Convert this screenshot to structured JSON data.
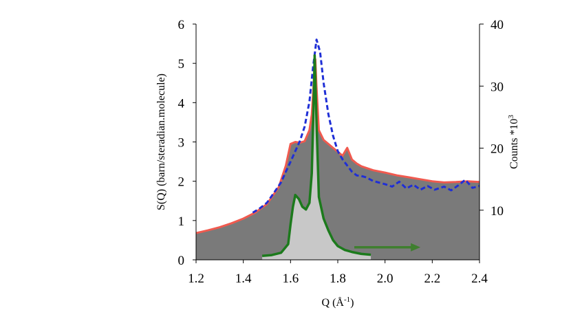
{
  "chart_data": {
    "type": "line",
    "xlabel": "Q  (Å",
    "xlabel_sup": "-1",
    "xlabel_close": ")",
    "ylabel": "S(Q) (barn/steradian.molecule)",
    "y2label": "Counts *10",
    "y2label_sup": "3",
    "xlim": [
      1.2,
      2.4
    ],
    "ylim": [
      0,
      6
    ],
    "y2lim": [
      2,
      40
    ],
    "xticks": [
      "1.2",
      "1.4",
      "1.6",
      "1.8",
      "2.0",
      "2.2",
      "2.4"
    ],
    "yticks": [
      "0",
      "1",
      "2",
      "3",
      "4",
      "5",
      "6"
    ],
    "y2ticks": [
      "10",
      "20",
      "30",
      "40"
    ],
    "grid": false,
    "colors": {
      "plot_background": "#ffffff",
      "area_fill": "#7a7a7a",
      "red_line": "#f05a4f",
      "blue_dashed": "#1f2fd6",
      "green_line": "#1c7a1c",
      "green_fill": "#c8c8c8",
      "arrow": "#3f7f2f"
    },
    "series": [
      {
        "style": "solid-red-filled",
        "axis": "left",
        "points": [
          [
            1.2,
            0.68
          ],
          [
            1.25,
            0.75
          ],
          [
            1.3,
            0.83
          ],
          [
            1.35,
            0.93
          ],
          [
            1.4,
            1.05
          ],
          [
            1.45,
            1.2
          ],
          [
            1.5,
            1.42
          ],
          [
            1.55,
            1.85
          ],
          [
            1.58,
            2.4
          ],
          [
            1.6,
            2.95
          ],
          [
            1.62,
            3.0
          ],
          [
            1.64,
            2.98
          ],
          [
            1.66,
            3.02
          ],
          [
            1.68,
            3.3
          ],
          [
            1.69,
            3.7
          ],
          [
            1.7,
            4.7
          ],
          [
            1.705,
            5.1
          ],
          [
            1.71,
            4.4
          ],
          [
            1.72,
            3.3
          ],
          [
            1.74,
            3.05
          ],
          [
            1.76,
            2.95
          ],
          [
            1.78,
            2.85
          ],
          [
            1.8,
            2.75
          ],
          [
            1.82,
            2.65
          ],
          [
            1.84,
            2.85
          ],
          [
            1.86,
            2.55
          ],
          [
            1.88,
            2.45
          ],
          [
            1.9,
            2.38
          ],
          [
            1.95,
            2.28
          ],
          [
            2.0,
            2.22
          ],
          [
            2.05,
            2.15
          ],
          [
            2.1,
            2.1
          ],
          [
            2.15,
            2.05
          ],
          [
            2.2,
            2.0
          ],
          [
            2.25,
            1.97
          ],
          [
            2.3,
            1.98
          ],
          [
            2.35,
            2.0
          ],
          [
            2.4,
            1.98
          ]
        ]
      },
      {
        "style": "dashed-blue",
        "axis": "right",
        "points": [
          [
            1.44,
            9.6
          ],
          [
            1.47,
            10.3
          ],
          [
            1.5,
            11.2
          ],
          [
            1.53,
            12.8
          ],
          [
            1.56,
            14.5
          ],
          [
            1.58,
            16.2
          ],
          [
            1.6,
            17.8
          ],
          [
            1.62,
            19.5
          ],
          [
            1.64,
            21.2
          ],
          [
            1.66,
            23.5
          ],
          [
            1.68,
            27.5
          ],
          [
            1.695,
            33.0
          ],
          [
            1.71,
            37.5
          ],
          [
            1.725,
            35.5
          ],
          [
            1.74,
            30.5
          ],
          [
            1.76,
            25.5
          ],
          [
            1.78,
            22.0
          ],
          [
            1.8,
            19.5
          ],
          [
            1.82,
            18.2
          ],
          [
            1.84,
            17.2
          ],
          [
            1.86,
            16.2
          ],
          [
            1.88,
            15.6
          ],
          [
            1.9,
            15.5
          ],
          [
            1.92,
            15.3
          ],
          [
            1.95,
            14.7
          ],
          [
            2.0,
            14.2
          ],
          [
            2.03,
            13.8
          ],
          [
            2.06,
            14.6
          ],
          [
            2.09,
            13.5
          ],
          [
            2.12,
            14.1
          ],
          [
            2.15,
            13.3
          ],
          [
            2.18,
            13.9
          ],
          [
            2.21,
            13.3
          ],
          [
            2.25,
            13.8
          ],
          [
            2.28,
            13.2
          ],
          [
            2.31,
            14.0
          ],
          [
            2.34,
            14.9
          ],
          [
            2.37,
            13.6
          ],
          [
            2.4,
            13.9
          ]
        ]
      },
      {
        "style": "solid-green-filled",
        "axis": "left",
        "points": [
          [
            1.48,
            0.1
          ],
          [
            1.52,
            0.12
          ],
          [
            1.56,
            0.18
          ],
          [
            1.59,
            0.4
          ],
          [
            1.6,
            0.9
          ],
          [
            1.61,
            1.35
          ],
          [
            1.62,
            1.65
          ],
          [
            1.635,
            1.55
          ],
          [
            1.65,
            1.35
          ],
          [
            1.665,
            1.28
          ],
          [
            1.68,
            1.45
          ],
          [
            1.69,
            2.2
          ],
          [
            1.697,
            3.8
          ],
          [
            1.702,
            5.2
          ],
          [
            1.71,
            3.5
          ],
          [
            1.72,
            1.6
          ],
          [
            1.74,
            1.05
          ],
          [
            1.76,
            0.75
          ],
          [
            1.78,
            0.5
          ],
          [
            1.8,
            0.35
          ],
          [
            1.83,
            0.25
          ],
          [
            1.86,
            0.2
          ],
          [
            1.9,
            0.15
          ],
          [
            1.94,
            0.13
          ]
        ]
      }
    ],
    "annotations": [
      {
        "type": "arrow",
        "from": [
          1.87,
          0.32
        ],
        "to": [
          2.15,
          0.32
        ],
        "color": "#3f7f2f"
      }
    ]
  }
}
